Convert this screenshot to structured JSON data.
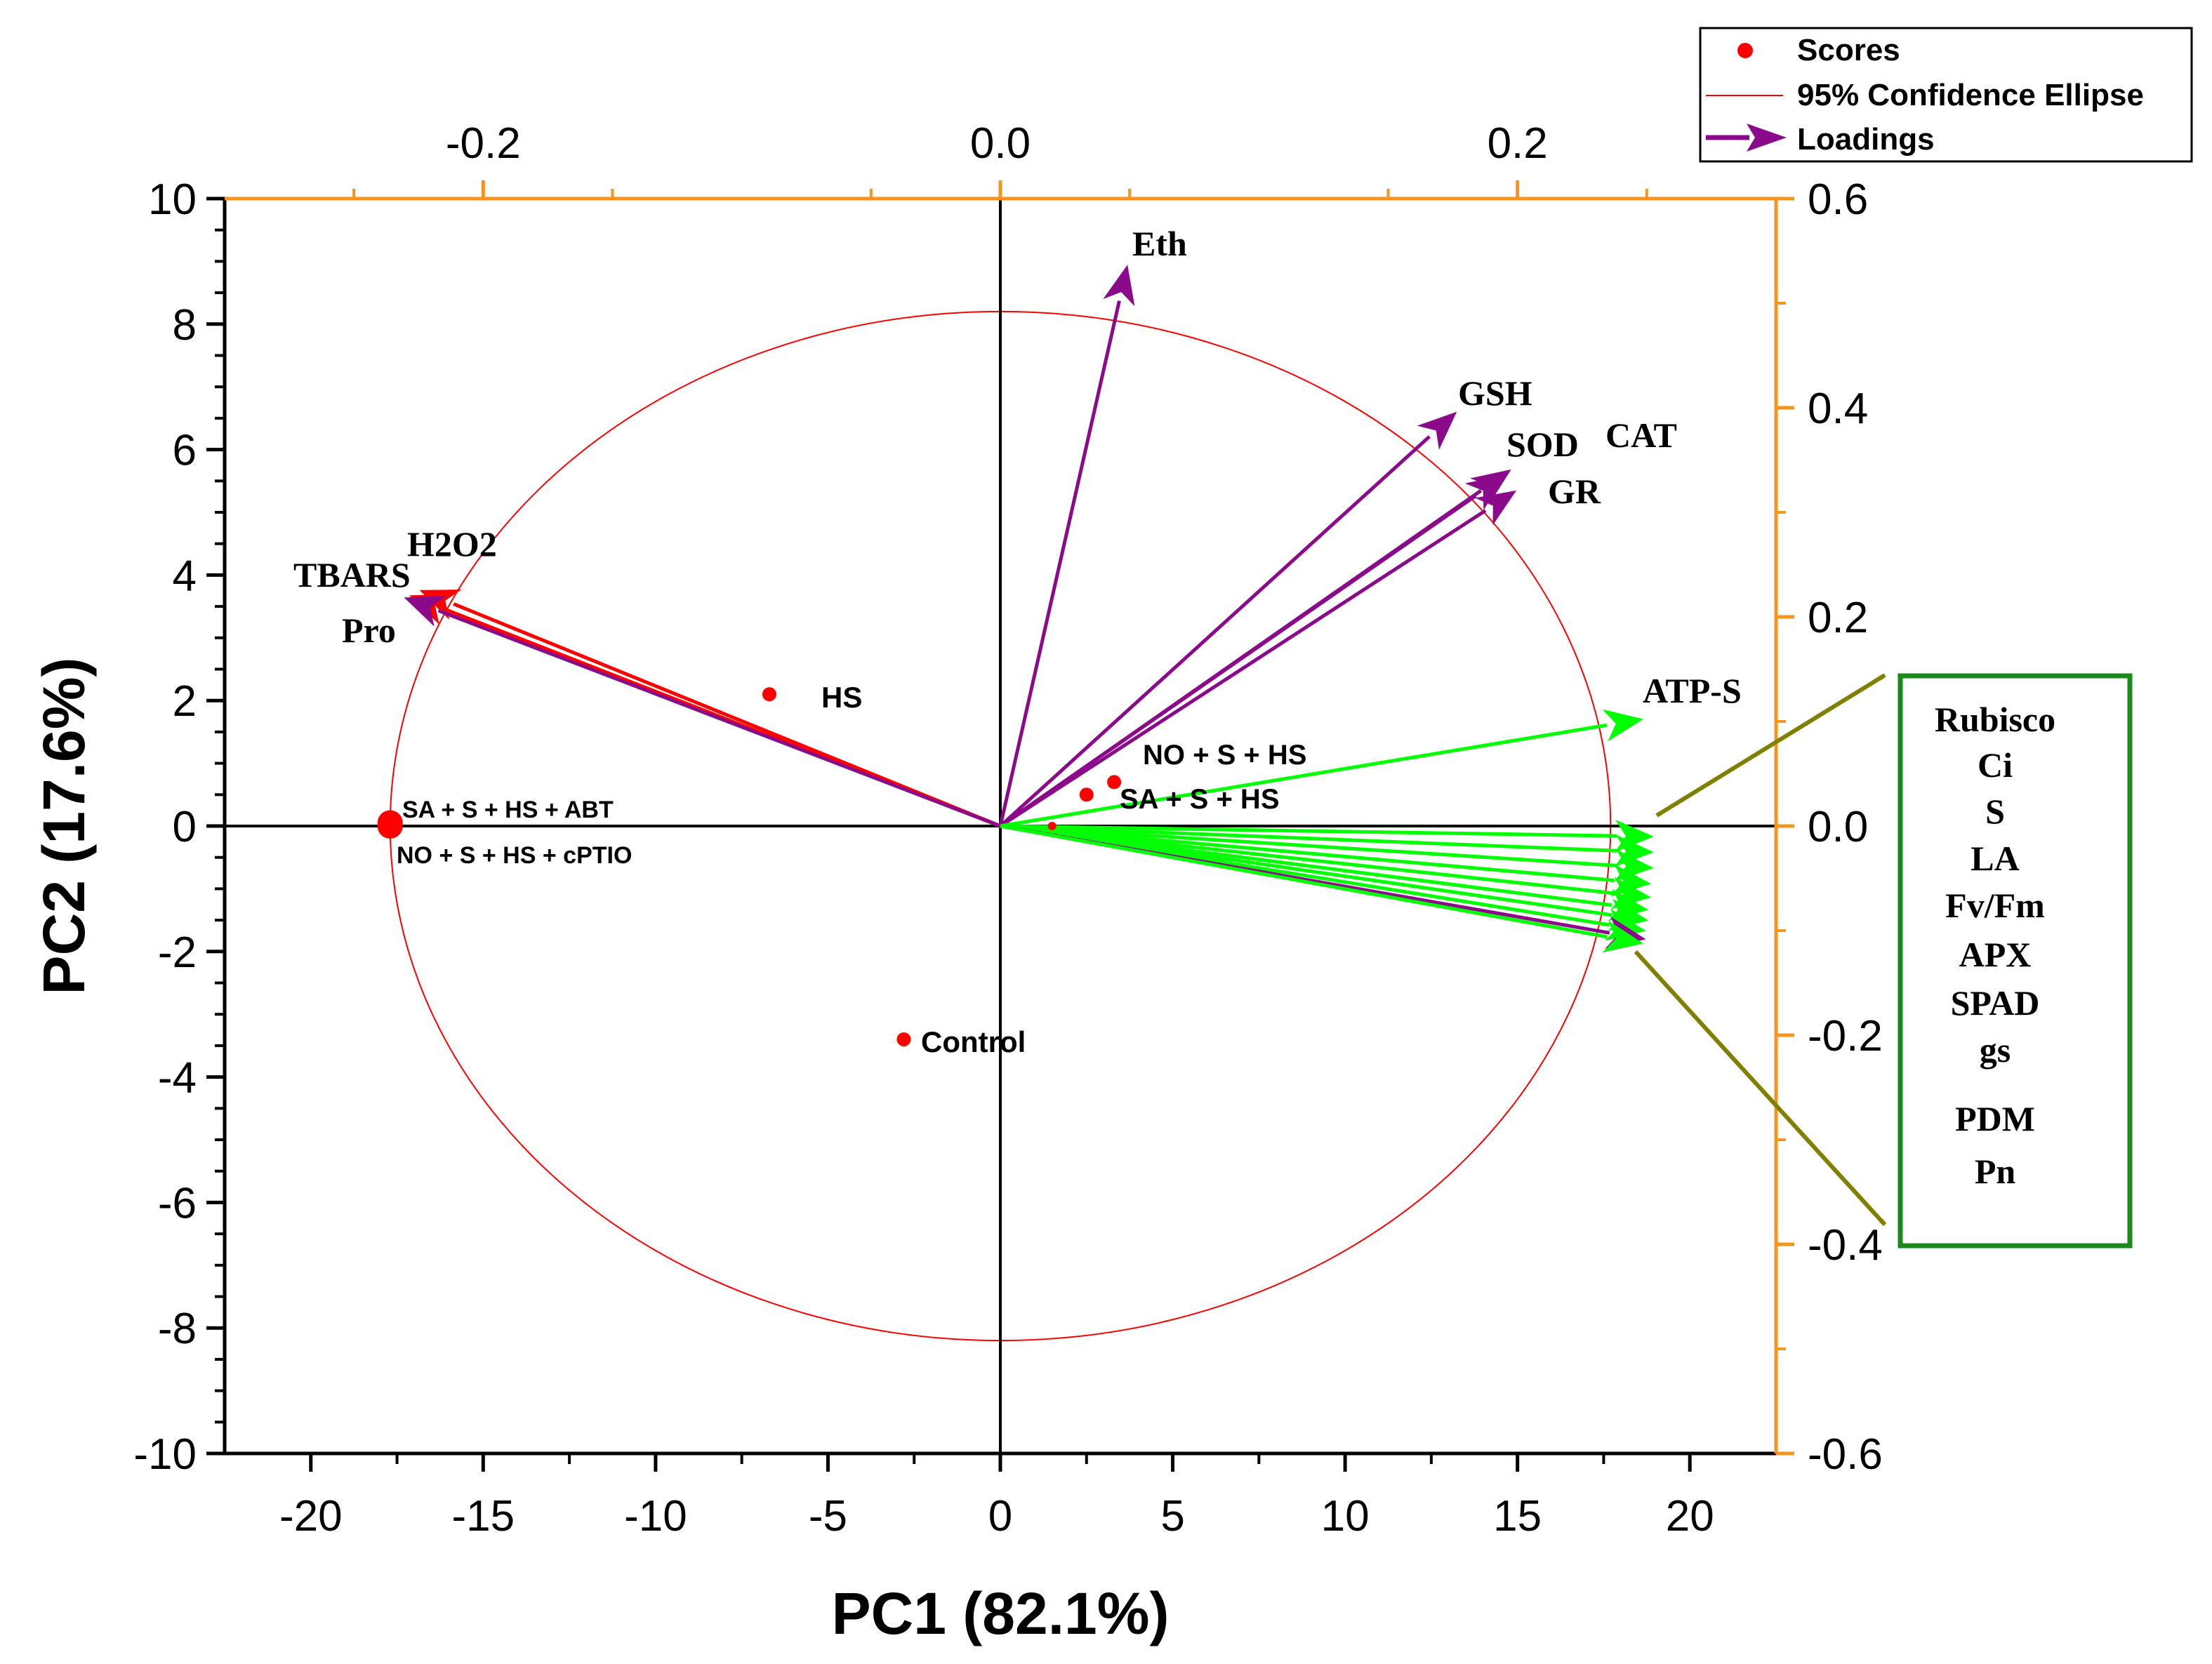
{
  "chart_data": {
    "type": "scatter",
    "subtype": "pca-biplot",
    "xlabel": "PC1 (82.1%)",
    "ylabel": "PC2 (17.6%)",
    "xlim": [
      -22.5,
      22.5
    ],
    "ylim": [
      -10,
      10
    ],
    "xticks": [
      -20,
      -15,
      -10,
      -5,
      0,
      5,
      10,
      15,
      20
    ],
    "xtick_labels": [
      "-20",
      "-15",
      "-10",
      "-5",
      "0",
      "5",
      "10",
      "15",
      "20"
    ],
    "yticks": [
      -10,
      -8,
      -6,
      -4,
      -2,
      0,
      2,
      4,
      6,
      8,
      10
    ],
    "ytick_labels": [
      "-10",
      "-8",
      "-6",
      "-4",
      "-2",
      "0",
      "2",
      "4",
      "6",
      "8",
      "10"
    ],
    "top_axis": {
      "lim": [
        -0.3,
        0.3
      ],
      "ticks": [
        -0.2,
        0.0,
        0.2
      ],
      "tick_labels": [
        "-0.2",
        "0.0",
        "0.2"
      ]
    },
    "right_axis": {
      "lim": [
        -0.6,
        0.6
      ],
      "ticks": [
        -0.6,
        -0.4,
        -0.2,
        0.0,
        0.2,
        0.4,
        0.6
      ],
      "tick_labels": [
        "-0.6",
        "-0.4",
        "-0.2",
        "0.0",
        "0.2",
        "0.4",
        "0.6"
      ]
    },
    "secondary_axis_color": "#f7941d",
    "legend": {
      "position": "top-right",
      "entries": [
        "Scores",
        "95% Confidence Ellipse",
        "Loadings"
      ]
    },
    "ellipse": {
      "center": [
        0,
        0
      ],
      "rx": 17.7,
      "ry": 8.2,
      "color": "#ff0000"
    },
    "scores": [
      {
        "name": "HS",
        "x": -6.7,
        "y": 2.1
      },
      {
        "name": "NO + S + HS",
        "x": 3.3,
        "y": 0.7
      },
      {
        "name": "SA + S + HS",
        "x": 2.5,
        "y": 0.5
      },
      {
        "name": "SA + S + HS + ABT",
        "x": -17.7,
        "y": 0.05
      },
      {
        "name": "NO + S + HS + cPTIO",
        "x": -17.7,
        "y": 0.0
      },
      {
        "name": "Control",
        "x": -2.8,
        "y": -3.4
      }
    ],
    "score_color": "#ff0000",
    "loadings": [
      {
        "name": "Eth",
        "x": 0.049,
        "y": 0.535,
        "color": "#8b0a8b"
      },
      {
        "name": "GSH",
        "x": 0.176,
        "y": 0.395,
        "color": "#8b0a8b"
      },
      {
        "name": "SOD",
        "x": 0.195,
        "y": 0.335,
        "color": "#8b0a8b"
      },
      {
        "name": "CAT",
        "x": 0.197,
        "y": 0.34,
        "color": "#8b0a8b"
      },
      {
        "name": "GR",
        "x": 0.199,
        "y": 0.32,
        "color": "#8b0a8b"
      },
      {
        "name": "H2O2",
        "x": -0.224,
        "y": 0.225,
        "color": "#ff0000"
      },
      {
        "name": "TBARS",
        "x": -0.228,
        "y": 0.22,
        "color": "#ff0000"
      },
      {
        "name": "Pro",
        "x": -0.23,
        "y": 0.218,
        "color": "#8b0a8b"
      },
      {
        "name": "ATP-S",
        "x": 0.248,
        "y": 0.102,
        "color": "#00ff00"
      },
      {
        "name": "Rubisco",
        "x": 0.252,
        "y": -0.01,
        "color": "#00ff00"
      },
      {
        "name": "Ci",
        "x": 0.252,
        "y": -0.025,
        "color": "#00ff00"
      },
      {
        "name": "S",
        "x": 0.252,
        "y": -0.04,
        "color": "#00ff00"
      },
      {
        "name": "LA",
        "x": 0.251,
        "y": -0.055,
        "color": "#00ff00"
      },
      {
        "name": "Fv/Fm",
        "x": 0.251,
        "y": -0.068,
        "color": "#00ff00"
      },
      {
        "name": "APX",
        "x": 0.25,
        "y": -0.08,
        "color": "#00ff00"
      },
      {
        "name": "SPAD",
        "x": 0.25,
        "y": -0.09,
        "color": "#00ff00"
      },
      {
        "name": "gs",
        "x": 0.249,
        "y": -0.1,
        "color": "#00ff00"
      },
      {
        "name": "PDM",
        "x": 0.249,
        "y": -0.108,
        "color": "#8b0a8b"
      },
      {
        "name": "Pn",
        "x": 0.248,
        "y": -0.112,
        "color": "#00ff00"
      }
    ],
    "loading_labels_on_plot": [
      "Eth",
      "GSH",
      "SOD",
      "CAT",
      "GR",
      "H2O2",
      "TBARS",
      "Pro",
      "ATP-S"
    ],
    "grouped_box": {
      "labels": [
        "Rubisco",
        "Ci",
        "S",
        "LA",
        "Fv/Fm",
        "APX",
        "SPAD",
        "gs",
        "PDM",
        "Pn"
      ],
      "border_color": "#1a8a1a",
      "pointer_color": "#808000"
    }
  }
}
